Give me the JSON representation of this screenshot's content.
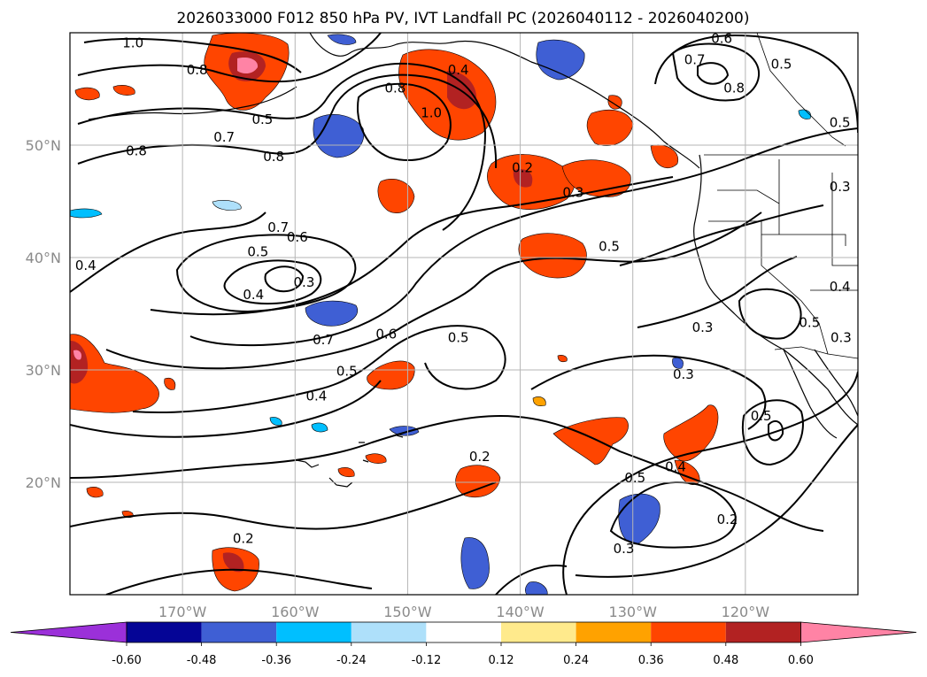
{
  "figure": {
    "title": "2026033000 F012 850 hPa PV, IVT Landfall PC (2026040112 - 2026040200)"
  },
  "map": {
    "projection": "lat-lon",
    "lon_range": [
      -180,
      -110
    ],
    "lat_range": [
      10,
      60
    ],
    "lat_ticks": [
      {
        "value": 20,
        "label": "20°N"
      },
      {
        "value": 30,
        "label": "30°N"
      },
      {
        "value": 40,
        "label": "40°N"
      },
      {
        "value": 50,
        "label": "50°N"
      }
    ],
    "lon_ticks": [
      {
        "value": -170,
        "label": "170°W"
      },
      {
        "value": -160,
        "label": "160°W"
      },
      {
        "value": -150,
        "label": "150°W"
      },
      {
        "value": -140,
        "label": "140°W"
      },
      {
        "value": -130,
        "label": "130°W"
      },
      {
        "value": -120,
        "label": "120°W"
      }
    ],
    "contour_labels": [
      {
        "text": "1.0",
        "lon": -174.4,
        "lat": 58.7
      },
      {
        "text": "0.8",
        "lon": -168.7,
        "lat": 56.3
      },
      {
        "text": "0.5",
        "lon": -162.9,
        "lat": 51.9
      },
      {
        "text": "0.7",
        "lon": -166.3,
        "lat": 50.3
      },
      {
        "text": "0.8",
        "lon": -174.1,
        "lat": 49.1
      },
      {
        "text": "0.8",
        "lon": -161.9,
        "lat": 48.6
      },
      {
        "text": "0.8",
        "lon": -151.1,
        "lat": 54.7
      },
      {
        "text": "1.0",
        "lon": -147.9,
        "lat": 52.5
      },
      {
        "text": "0.4",
        "lon": -145.5,
        "lat": 56.3
      },
      {
        "text": "0.6",
        "lon": -122.1,
        "lat": 59.1
      },
      {
        "text": "0.7",
        "lon": -124.5,
        "lat": 57.2
      },
      {
        "text": "0.8",
        "lon": -121.0,
        "lat": 54.7
      },
      {
        "text": "0.5",
        "lon": -116.8,
        "lat": 56.8
      },
      {
        "text": "0.5",
        "lon": -111.6,
        "lat": 51.6
      },
      {
        "text": "0.2",
        "lon": -139.8,
        "lat": 47.6
      },
      {
        "text": "0.3",
        "lon": -135.3,
        "lat": 45.4
      },
      {
        "text": "0.3",
        "lon": -111.6,
        "lat": 45.9
      },
      {
        "text": "0.7",
        "lon": -161.5,
        "lat": 42.3
      },
      {
        "text": "0.6",
        "lon": -159.8,
        "lat": 41.4
      },
      {
        "text": "0.5",
        "lon": -163.3,
        "lat": 40.1
      },
      {
        "text": "0.4",
        "lon": -163.7,
        "lat": 36.3
      },
      {
        "text": "0.3",
        "lon": -159.2,
        "lat": 37.4
      },
      {
        "text": "0.4",
        "lon": -178.6,
        "lat": 38.9
      },
      {
        "text": "0.7",
        "lon": -157.5,
        "lat": 32.3
      },
      {
        "text": "0.6",
        "lon": -151.9,
        "lat": 32.8
      },
      {
        "text": "0.5",
        "lon": -155.4,
        "lat": 29.5
      },
      {
        "text": "0.4",
        "lon": -158.1,
        "lat": 27.3
      },
      {
        "text": "0.5",
        "lon": -132.1,
        "lat": 40.6
      },
      {
        "text": "0.5",
        "lon": -145.5,
        "lat": 32.5
      },
      {
        "text": "0.3",
        "lon": -123.8,
        "lat": 33.4
      },
      {
        "text": "0.3",
        "lon": -125.5,
        "lat": 29.2
      },
      {
        "text": "0.4",
        "lon": -111.6,
        "lat": 37.0
      },
      {
        "text": "0.5",
        "lon": -114.3,
        "lat": 33.8
      },
      {
        "text": "0.3",
        "lon": -111.5,
        "lat": 32.5
      },
      {
        "text": "0.5",
        "lon": -118.6,
        "lat": 25.5
      },
      {
        "text": "0.4",
        "lon": -126.2,
        "lat": 21.0
      },
      {
        "text": "0.5",
        "lon": -129.8,
        "lat": 20.0
      },
      {
        "text": "0.2",
        "lon": -121.6,
        "lat": 16.3
      },
      {
        "text": "0.3",
        "lon": -130.8,
        "lat": 13.7
      },
      {
        "text": "0.2",
        "lon": -143.6,
        "lat": 21.9
      },
      {
        "text": "0.2",
        "lon": -164.6,
        "lat": 14.6
      }
    ],
    "colors": {
      "neg_lt": "#aee0fa",
      "neg_1": "#00bfff",
      "neg_2": "#3f5fd4",
      "neg_3": "#050596",
      "pos_1": "#ffea8c",
      "pos_2": "#ffa200",
      "pos_3": "#ff4500",
      "pos_4": "#b22222",
      "pos_5": "#ff83a5"
    }
  },
  "colorbar": {
    "levels": [
      "-0.60",
      "-0.48",
      "-0.36",
      "-0.24",
      "-0.12",
      "0.12",
      "0.24",
      "0.36",
      "0.48",
      "0.60"
    ],
    "colors": [
      "#9b30d9",
      "#050596",
      "#3f5fd4",
      "#00bfff",
      "#aee0fa",
      "#ffffff",
      "#ffea8c",
      "#ffa200",
      "#ff4500",
      "#b22222",
      "#ff83a5"
    ]
  }
}
